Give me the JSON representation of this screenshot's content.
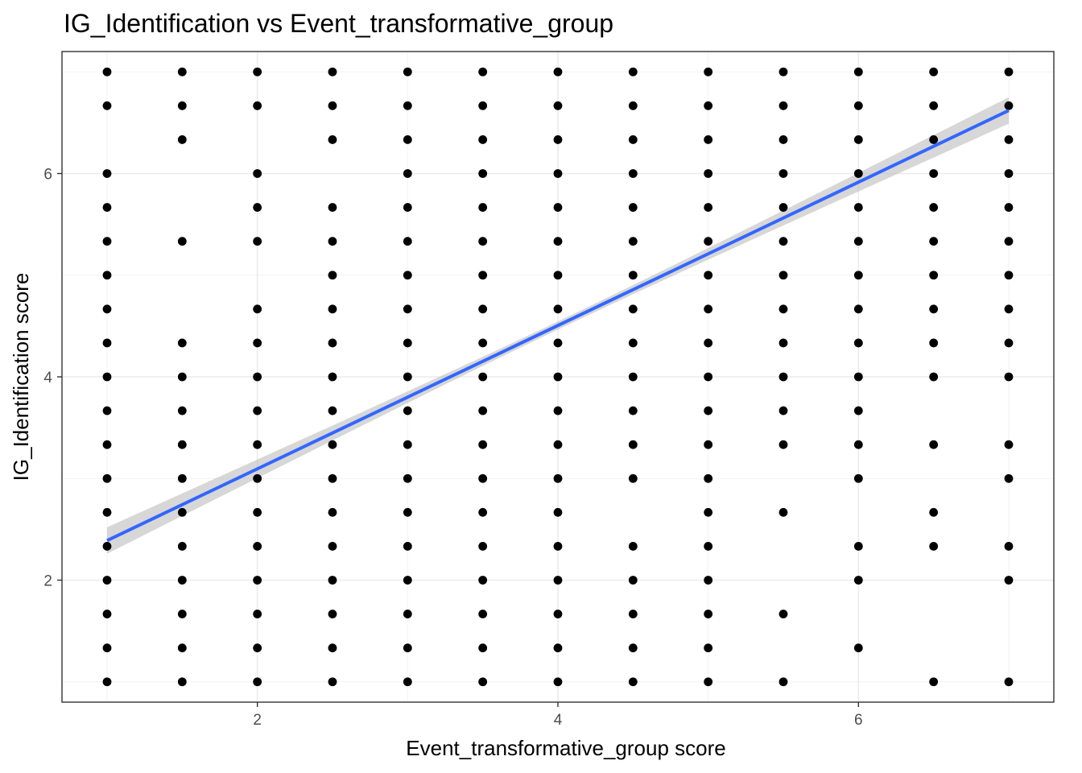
{
  "chart_data": {
    "type": "scatter",
    "title": "IG_Identification vs Event_transformative_group",
    "xlabel": "Event_transformative_group score",
    "ylabel": "IG_Identification score",
    "xlim": [
      0.7,
      7.3
    ],
    "ylim": [
      0.8,
      7.2
    ],
    "x_ticks": [
      2,
      4,
      6
    ],
    "x_tick_labels": [
      "2",
      "4",
      "6"
    ],
    "y_ticks": [
      2,
      4,
      6
    ],
    "y_tick_labels": [
      "2",
      "4",
      "6"
    ],
    "grid": true,
    "legend": "none",
    "point_color": "#000000",
    "columns": [
      {
        "x": 1.0,
        "y": [
          1.0,
          1.333,
          1.667,
          2.0,
          2.333,
          2.667,
          3.0,
          3.333,
          3.667,
          4.0,
          4.333,
          4.667,
          5.0,
          5.333,
          5.667,
          6.0,
          6.667,
          7.0
        ]
      },
      {
        "x": 1.5,
        "y": [
          1.0,
          1.333,
          1.667,
          2.0,
          2.333,
          2.667,
          3.0,
          3.333,
          3.667,
          4.0,
          4.333,
          5.333,
          6.333,
          6.667,
          7.0
        ]
      },
      {
        "x": 2.0,
        "y": [
          1.0,
          1.333,
          1.667,
          2.0,
          2.333,
          2.667,
          3.0,
          3.333,
          3.667,
          4.0,
          4.333,
          4.667,
          5.333,
          5.667,
          6.0,
          6.667,
          7.0
        ]
      },
      {
        "x": 2.5,
        "y": [
          1.0,
          1.333,
          1.667,
          2.0,
          2.333,
          2.667,
          3.0,
          3.333,
          3.667,
          4.0,
          4.333,
          4.667,
          5.0,
          5.333,
          5.667,
          6.333,
          6.667,
          7.0
        ]
      },
      {
        "x": 3.0,
        "y": [
          1.0,
          1.333,
          1.667,
          2.0,
          2.333,
          2.667,
          3.0,
          3.333,
          3.667,
          4.0,
          4.333,
          4.667,
          5.0,
          5.333,
          5.667,
          6.0,
          6.333,
          6.667,
          7.0
        ]
      },
      {
        "x": 3.5,
        "y": [
          1.0,
          1.333,
          1.667,
          2.0,
          2.333,
          2.667,
          3.0,
          3.333,
          3.667,
          4.0,
          4.333,
          4.667,
          5.0,
          5.333,
          5.667,
          6.0,
          6.333,
          6.667,
          7.0
        ]
      },
      {
        "x": 4.0,
        "y": [
          1.0,
          1.333,
          1.667,
          2.0,
          2.333,
          2.667,
          3.0,
          3.333,
          3.667,
          4.0,
          4.333,
          4.667,
          5.0,
          5.333,
          5.667,
          6.0,
          6.333,
          6.667,
          7.0
        ]
      },
      {
        "x": 4.5,
        "y": [
          1.0,
          1.333,
          1.667,
          2.0,
          2.333,
          3.0,
          3.333,
          3.667,
          4.0,
          4.333,
          4.667,
          5.0,
          5.333,
          5.667,
          6.0,
          6.333,
          6.667,
          7.0
        ]
      },
      {
        "x": 5.0,
        "y": [
          1.0,
          1.333,
          1.667,
          2.0,
          2.333,
          2.667,
          3.0,
          3.333,
          3.667,
          4.0,
          4.333,
          4.667,
          5.0,
          5.333,
          5.667,
          6.0,
          6.333,
          6.667,
          7.0
        ]
      },
      {
        "x": 5.5,
        "y": [
          1.0,
          1.667,
          2.667,
          3.333,
          3.667,
          4.0,
          4.333,
          4.667,
          5.0,
          5.333,
          5.667,
          6.0,
          6.333,
          6.667,
          7.0
        ]
      },
      {
        "x": 6.0,
        "y": [
          1.333,
          2.0,
          2.333,
          3.0,
          3.333,
          3.667,
          4.0,
          4.333,
          4.667,
          5.0,
          5.333,
          5.667,
          6.0,
          6.333,
          6.667,
          7.0
        ]
      },
      {
        "x": 6.5,
        "y": [
          1.0,
          2.333,
          2.667,
          3.333,
          4.0,
          4.333,
          4.667,
          5.0,
          5.333,
          5.667,
          6.0,
          6.333,
          6.667,
          7.0
        ]
      },
      {
        "x": 7.0,
        "y": [
          1.0,
          2.0,
          2.333,
          3.0,
          3.333,
          4.0,
          4.333,
          4.667,
          5.0,
          5.333,
          5.667,
          6.0,
          6.333,
          6.667,
          7.0
        ]
      }
    ],
    "smooth": {
      "method": "lm",
      "color": "#3366ff",
      "ribbon_color": "#bdbdbd",
      "x": [
        1.0,
        7.0
      ],
      "y": [
        2.39,
        6.62
      ],
      "ci_halfwidth_ends": 0.13,
      "ci_halfwidth_center": 0.04
    }
  }
}
